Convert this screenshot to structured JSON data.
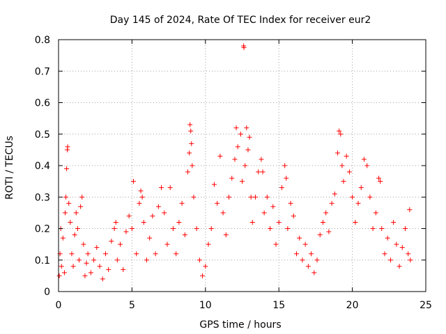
{
  "chart_data": {
    "type": "scatter",
    "title": "Day 145 of 2024, Rate Of TEC Index for receiver eur2",
    "xlabel": "GPS time / hours",
    "ylabel": "ROTI / TECUs",
    "xlim": [
      0,
      25
    ],
    "ylim": [
      0,
      0.8
    ],
    "xticks": [
      0,
      5,
      10,
      15,
      20,
      25
    ],
    "xtick_labels": [
      "0",
      "5",
      "10",
      "15",
      "20",
      "25"
    ],
    "yticks": [
      0,
      0.1,
      0.2,
      0.3,
      0.4,
      0.5,
      0.6,
      0.7,
      0.8
    ],
    "ytick_labels": [
      "0",
      "0.1",
      "0.2",
      "0.3",
      "0.4",
      "0.5",
      "0.6",
      "0.7",
      "0.8"
    ],
    "grid": true,
    "marker": "+",
    "color": "#ff0000",
    "points": [
      [
        0.05,
        0.05
      ],
      [
        0.1,
        0.12
      ],
      [
        0.15,
        0.2
      ],
      [
        0.2,
        0.08
      ],
      [
        0.3,
        0.17
      ],
      [
        0.4,
        0.06
      ],
      [
        0.45,
        0.25
      ],
      [
        0.5,
        0.3
      ],
      [
        0.55,
        0.39
      ],
      [
        0.6,
        0.45
      ],
      [
        0.62,
        0.46
      ],
      [
        0.7,
        0.28
      ],
      [
        0.8,
        0.22
      ],
      [
        0.9,
        0.12
      ],
      [
        1.0,
        0.08
      ],
      [
        1.1,
        0.18
      ],
      [
        1.2,
        0.25
      ],
      [
        1.3,
        0.2
      ],
      [
        1.4,
        0.1
      ],
      [
        1.5,
        0.27
      ],
      [
        1.6,
        0.3
      ],
      [
        1.7,
        0.15
      ],
      [
        1.8,
        0.05
      ],
      [
        1.9,
        0.09
      ],
      [
        2.0,
        0.12
      ],
      [
        2.2,
        0.06
      ],
      [
        2.4,
        0.1
      ],
      [
        2.6,
        0.14
      ],
      [
        2.8,
        0.08
      ],
      [
        3.0,
        0.04
      ],
      [
        3.2,
        0.12
      ],
      [
        3.4,
        0.07
      ],
      [
        3.6,
        0.16
      ],
      [
        3.8,
        0.2
      ],
      [
        3.9,
        0.22
      ],
      [
        4.0,
        0.1
      ],
      [
        4.2,
        0.15
      ],
      [
        4.4,
        0.07
      ],
      [
        4.6,
        0.19
      ],
      [
        4.8,
        0.24
      ],
      [
        5.0,
        0.2
      ],
      [
        5.1,
        0.35
      ],
      [
        5.3,
        0.12
      ],
      [
        5.5,
        0.28
      ],
      [
        5.6,
        0.32
      ],
      [
        5.7,
        0.3
      ],
      [
        5.8,
        0.22
      ],
      [
        6.0,
        0.1
      ],
      [
        6.2,
        0.17
      ],
      [
        6.4,
        0.24
      ],
      [
        6.6,
        0.12
      ],
      [
        6.8,
        0.27
      ],
      [
        7.0,
        0.33
      ],
      [
        7.2,
        0.25
      ],
      [
        7.4,
        0.15
      ],
      [
        7.6,
        0.33
      ],
      [
        7.8,
        0.2
      ],
      [
        8.0,
        0.12
      ],
      [
        8.2,
        0.22
      ],
      [
        8.4,
        0.28
      ],
      [
        8.6,
        0.18
      ],
      [
        8.8,
        0.38
      ],
      [
        8.9,
        0.44
      ],
      [
        8.95,
        0.53
      ],
      [
        9.0,
        0.51
      ],
      [
        9.05,
        0.47
      ],
      [
        9.1,
        0.4
      ],
      [
        9.2,
        0.3
      ],
      [
        9.4,
        0.2
      ],
      [
        9.6,
        0.1
      ],
      [
        9.8,
        0.05
      ],
      [
        10.0,
        0.08
      ],
      [
        10.2,
        0.15
      ],
      [
        10.4,
        0.2
      ],
      [
        10.6,
        0.34
      ],
      [
        10.8,
        0.28
      ],
      [
        11.0,
        0.43
      ],
      [
        11.2,
        0.25
      ],
      [
        11.4,
        0.18
      ],
      [
        11.6,
        0.3
      ],
      [
        11.8,
        0.36
      ],
      [
        12.0,
        0.42
      ],
      [
        12.1,
        0.52
      ],
      [
        12.2,
        0.46
      ],
      [
        12.4,
        0.5
      ],
      [
        12.5,
        0.35
      ],
      [
        12.6,
        0.78
      ],
      [
        12.62,
        0.775
      ],
      [
        12.7,
        0.4
      ],
      [
        12.8,
        0.52
      ],
      [
        12.9,
        0.45
      ],
      [
        13.0,
        0.49
      ],
      [
        13.1,
        0.3
      ],
      [
        13.2,
        0.22
      ],
      [
        13.4,
        0.3
      ],
      [
        13.6,
        0.38
      ],
      [
        13.8,
        0.42
      ],
      [
        13.9,
        0.38
      ],
      [
        14.0,
        0.25
      ],
      [
        14.2,
        0.3
      ],
      [
        14.4,
        0.2
      ],
      [
        14.6,
        0.27
      ],
      [
        14.8,
        0.15
      ],
      [
        15.0,
        0.22
      ],
      [
        15.2,
        0.33
      ],
      [
        15.4,
        0.4
      ],
      [
        15.5,
        0.36
      ],
      [
        15.6,
        0.2
      ],
      [
        15.8,
        0.28
      ],
      [
        16.0,
        0.24
      ],
      [
        16.2,
        0.12
      ],
      [
        16.4,
        0.17
      ],
      [
        16.6,
        0.1
      ],
      [
        16.8,
        0.15
      ],
      [
        17.0,
        0.08
      ],
      [
        17.2,
        0.12
      ],
      [
        17.4,
        0.06
      ],
      [
        17.6,
        0.1
      ],
      [
        17.8,
        0.18
      ],
      [
        18.0,
        0.22
      ],
      [
        18.2,
        0.25
      ],
      [
        18.4,
        0.19
      ],
      [
        18.6,
        0.28
      ],
      [
        18.8,
        0.31
      ],
      [
        19.0,
        0.44
      ],
      [
        19.1,
        0.51
      ],
      [
        19.2,
        0.5
      ],
      [
        19.3,
        0.4
      ],
      [
        19.4,
        0.35
      ],
      [
        19.6,
        0.43
      ],
      [
        19.8,
        0.38
      ],
      [
        20.0,
        0.3
      ],
      [
        20.2,
        0.22
      ],
      [
        20.4,
        0.28
      ],
      [
        20.6,
        0.33
      ],
      [
        20.8,
        0.42
      ],
      [
        21.0,
        0.4
      ],
      [
        21.2,
        0.3
      ],
      [
        21.4,
        0.2
      ],
      [
        21.6,
        0.25
      ],
      [
        21.8,
        0.36
      ],
      [
        21.9,
        0.35
      ],
      [
        22.0,
        0.2
      ],
      [
        22.2,
        0.12
      ],
      [
        22.4,
        0.17
      ],
      [
        22.6,
        0.1
      ],
      [
        22.8,
        0.22
      ],
      [
        23.0,
        0.15
      ],
      [
        23.2,
        0.08
      ],
      [
        23.4,
        0.14
      ],
      [
        23.6,
        0.2
      ],
      [
        23.8,
        0.12
      ],
      [
        23.9,
        0.26
      ],
      [
        23.95,
        0.1
      ]
    ]
  }
}
